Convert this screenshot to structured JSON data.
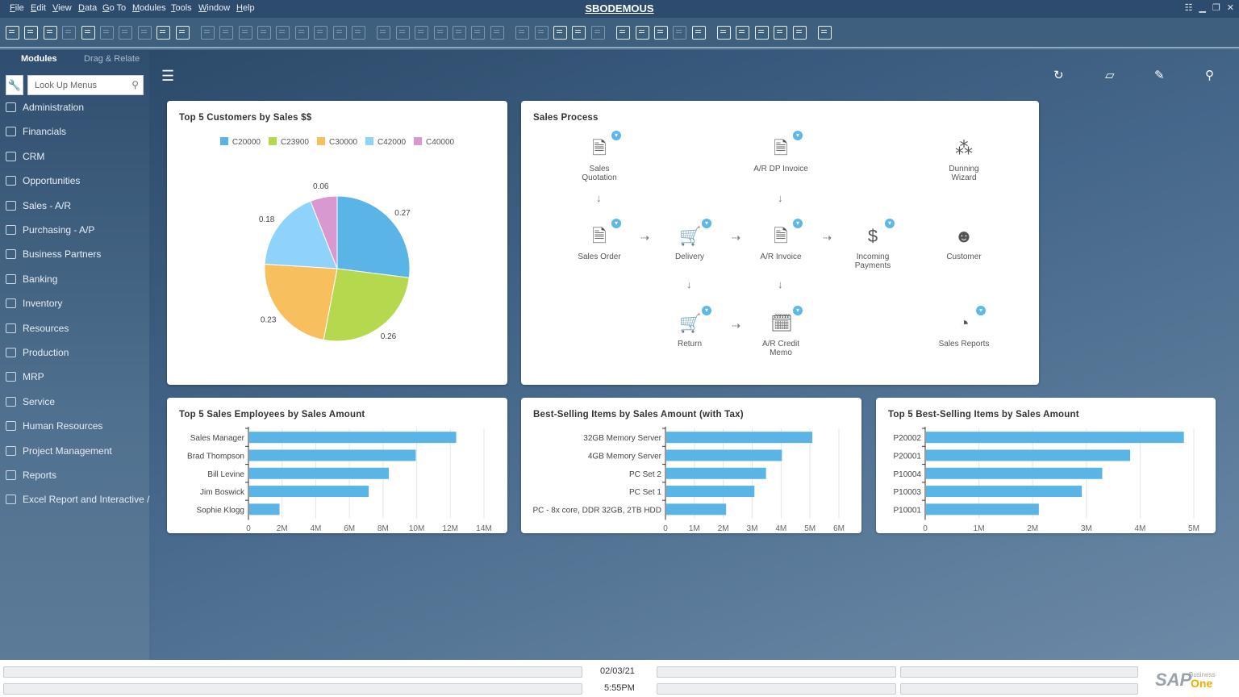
{
  "window": {
    "title": "SBODEMOUS"
  },
  "menu": [
    "File",
    "Edit",
    "View",
    "Data",
    "Go To",
    "Modules",
    "Tools",
    "Window",
    "Help"
  ],
  "toolbar_icons": [
    {
      "name": "preview-icon",
      "on": true
    },
    {
      "name": "print-icon",
      "on": true
    },
    {
      "name": "open-icon",
      "on": true
    },
    {
      "name": "email-icon",
      "on": false
    },
    {
      "name": "sms-icon",
      "on": true
    },
    {
      "name": "excel-icon",
      "on": false
    },
    {
      "name": "word-icon",
      "on": false
    },
    {
      "name": "pdf-icon",
      "on": false
    },
    {
      "name": "move-icon",
      "on": true
    },
    {
      "name": "lock-icon",
      "on": true
    },
    {
      "name": "find-icon",
      "on": false
    },
    {
      "name": "add-icon",
      "on": false
    },
    {
      "name": "first-record-icon",
      "on": false
    },
    {
      "name": "previous-record-icon",
      "on": false
    },
    {
      "name": "next-record-icon",
      "on": false
    },
    {
      "name": "last-record-icon",
      "on": false
    },
    {
      "name": "refresh-record-icon",
      "on": false
    },
    {
      "name": "filter-icon",
      "on": false
    },
    {
      "name": "sort-icon",
      "on": false
    },
    {
      "name": "base-document-icon",
      "on": false
    },
    {
      "name": "target-document-icon",
      "on": false
    },
    {
      "name": "journal-icon",
      "on": false
    },
    {
      "name": "payment-means-icon",
      "on": false
    },
    {
      "name": "balance-icon",
      "on": false
    },
    {
      "name": "gross-profit-icon",
      "on": false
    },
    {
      "name": "volume-weight-icon",
      "on": false
    },
    {
      "name": "edit-icon",
      "on": false
    },
    {
      "name": "settings-icon",
      "on": false
    },
    {
      "name": "form-settings-icon",
      "on": true
    },
    {
      "name": "messages-icon",
      "on": true
    },
    {
      "name": "alerts-icon",
      "on": false
    },
    {
      "name": "query-icon",
      "on": true
    },
    {
      "name": "report-icon",
      "on": true
    },
    {
      "name": "calculator-icon",
      "on": true
    },
    {
      "name": "users-icon",
      "on": false
    },
    {
      "name": "user-icon",
      "on": true
    },
    {
      "name": "backup-icon",
      "on": true
    },
    {
      "name": "layout-icon",
      "on": true
    },
    {
      "name": "exchange-rate-icon",
      "on": true
    },
    {
      "name": "approve-icon",
      "on": true
    },
    {
      "name": "web-icon",
      "on": true
    },
    {
      "name": "help-icon",
      "on": true
    }
  ],
  "sidebar": {
    "tabs": [
      "Modules",
      "Drag & Relate"
    ],
    "search_placeholder": "Look Up Menus",
    "items": [
      "Administration",
      "Financials",
      "CRM",
      "Opportunities",
      "Sales - A/R",
      "Purchasing - A/P",
      "Business Partners",
      "Banking",
      "Inventory",
      "Resources",
      "Production",
      "MRP",
      "Service",
      "Human Resources",
      "Project Management",
      "Reports",
      "Excel Report and Interactive /"
    ]
  },
  "toolbar_right": [
    "refresh-icon",
    "open-folder-icon",
    "edit-icon",
    "search-icon"
  ],
  "sales_process": {
    "title": "Sales Process",
    "nodes": [
      {
        "label": "Sales\nQuotation",
        "icon": "document-icon",
        "badge": true
      },
      {
        "label": "A/R DP Invoice",
        "icon": "invoice-icon",
        "badge": true
      },
      {
        "label": "Dunning\nWizard",
        "icon": "wizard-icon",
        "badge": false
      },
      {
        "label": "Sales Order",
        "icon": "document-icon",
        "badge": true
      },
      {
        "label": "Delivery",
        "icon": "cart-icon",
        "badge": true
      },
      {
        "label": "A/R Invoice",
        "icon": "invoice-icon",
        "badge": true
      },
      {
        "label": "Incoming\nPayments",
        "icon": "payment-icon",
        "badge": true
      },
      {
        "label": "Customer",
        "icon": "customer-icon",
        "badge": false
      },
      {
        "label": "Return",
        "icon": "return-cart-icon",
        "badge": true
      },
      {
        "label": "A/R Credit\nMemo",
        "icon": "credit-memo-icon",
        "badge": true
      },
      {
        "label": "Sales Reports",
        "icon": "pie-report-icon",
        "badge": true
      }
    ]
  },
  "status": {
    "date": "02/03/21",
    "time": "5:55PM",
    "logo": "SAP Business One"
  },
  "chart_data": [
    {
      "type": "pie",
      "title": "Top 5 Customers by Sales $$",
      "legend": "top",
      "categories": [
        "C20000",
        "C23900",
        "C30000",
        "C42000",
        "C40000"
      ],
      "values": [
        0.27,
        0.26,
        0.23,
        0.18,
        0.06
      ],
      "colors": [
        "#5ab4e5",
        "#b5d84e",
        "#f8bf5e",
        "#8fd3fb",
        "#d899d0"
      ]
    },
    {
      "type": "bar",
      "orientation": "horizontal",
      "title": "Top 5 Sales Employees by Sales Amount",
      "categories": [
        "Sales Manager",
        "Brad Thompson",
        "Bill Levine",
        "Jim Boswick",
        "Sophie Klogg"
      ],
      "values": [
        12300000,
        9900000,
        8300000,
        7100000,
        1800000
      ],
      "xlim": [
        0,
        14000000
      ],
      "ticks": [
        "0",
        "2M",
        "4M",
        "6M",
        "8M",
        "10M",
        "12M",
        "14M"
      ],
      "grid": true,
      "color": "#5ab4e5"
    },
    {
      "type": "bar",
      "orientation": "horizontal",
      "title": "Best-Selling Items by Sales Amount (with Tax)",
      "categories": [
        "32GB Memory Server",
        "4GB Memory Server",
        "PC Set 2",
        "PC Set 1",
        "PC - 8x core, DDR 32GB, 2TB HDD"
      ],
      "values": [
        5050000,
        4000000,
        3450000,
        3050000,
        2070000
      ],
      "xlim": [
        0,
        6000000
      ],
      "ticks": [
        "0",
        "1M",
        "2M",
        "3M",
        "4M",
        "5M",
        "6M"
      ],
      "grid": true,
      "color": "#5ab4e5"
    },
    {
      "type": "bar",
      "orientation": "horizontal",
      "title": "Top 5 Best-Selling Items by Sales Amount",
      "categories": [
        "P20002",
        "P20001",
        "P10004",
        "P10003",
        "P10001"
      ],
      "values": [
        4800000,
        3800000,
        3280000,
        2900000,
        2100000
      ],
      "xlim": [
        0,
        5000000
      ],
      "ticks": [
        "0",
        "1M",
        "2M",
        "3M",
        "4M",
        "5M"
      ],
      "grid": true,
      "color": "#5ab4e5"
    }
  ]
}
